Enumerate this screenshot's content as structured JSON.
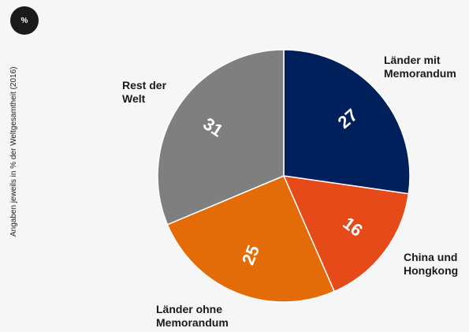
{
  "chart_data": {
    "type": "pie",
    "unit": "%",
    "note": "Angaben jeweils in % der Weltgesamtheit (2016)",
    "categories": [
      "Länder mit Memorandum",
      "China und Hongkong",
      "Länder ohne Memorandum",
      "Rest der Welt"
    ],
    "values": [
      27,
      16,
      25,
      31
    ],
    "colors": [
      "#00205b",
      "#e64a19",
      "#e36c09",
      "#7f7f7f"
    ]
  }
}
